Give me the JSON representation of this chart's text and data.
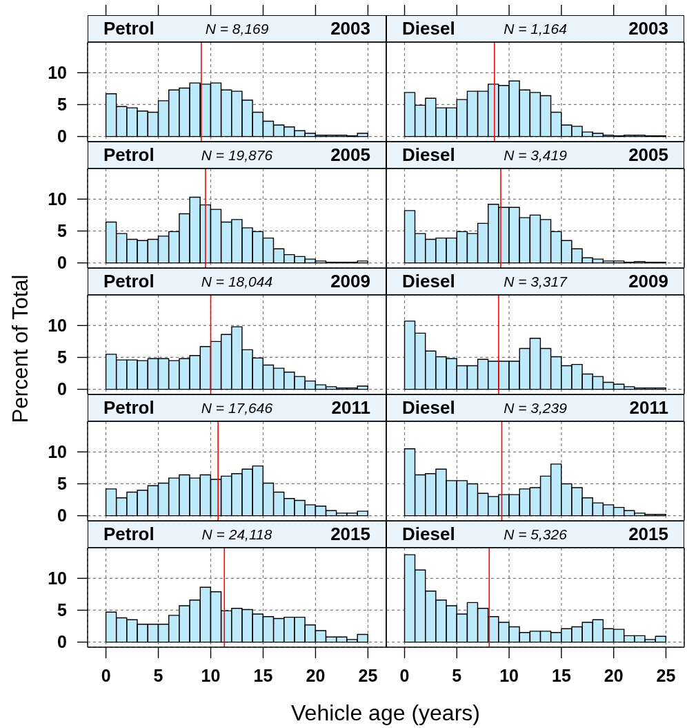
{
  "chart_data": [
    {
      "type": "histogram",
      "title": "Petrol",
      "annotations": [
        "N = 8,169",
        "2003"
      ],
      "bins": [
        0,
        1,
        2,
        3,
        4,
        5,
        6,
        7,
        8,
        9,
        10,
        11,
        12,
        13,
        14,
        15,
        16,
        17,
        18,
        19,
        20,
        21,
        22,
        23,
        24,
        25
      ],
      "values": [
        6.7,
        4.7,
        4.5,
        4.0,
        3.8,
        5.6,
        7.3,
        7.6,
        8.4,
        8.2,
        8.4,
        7.3,
        7.1,
        5.7,
        3.8,
        2.4,
        1.8,
        1.5,
        0.9,
        0.5,
        0.2,
        0.2,
        0.2,
        0.1,
        0.5
      ],
      "color": "#bfeafa",
      "xlim": [
        -1.75,
        26.75
      ],
      "xticks": [
        0,
        5,
        10,
        15,
        20,
        25
      ],
      "ylim": [
        -0.8,
        14.8
      ],
      "yticks": [
        10,
        5,
        0
      ],
      "grid": true,
      "ref_lines": [
        {
          "axis": "x",
          "value": 9.1,
          "color": "#ff0000"
        }
      ],
      "tick_labels": "y"
    },
    {
      "type": "histogram",
      "title": "Diesel",
      "annotations": [
        "N = 1,164",
        "2003"
      ],
      "bins": [
        0,
        1,
        2,
        3,
        4,
        5,
        6,
        7,
        8,
        9,
        10,
        11,
        12,
        13,
        14,
        15,
        16,
        17,
        18,
        19,
        20,
        21,
        22,
        23,
        24,
        25
      ],
      "values": [
        6.9,
        4.9,
        6.0,
        4.5,
        4.5,
        5.8,
        7.1,
        7.1,
        8.2,
        8.0,
        8.7,
        7.3,
        6.9,
        6.4,
        3.8,
        1.8,
        1.6,
        0.7,
        0.5,
        0.2,
        0.1,
        0.2,
        0.2,
        0.1,
        0.1
      ],
      "color": "#bfeafa",
      "xlim": [
        -1.75,
        26.75
      ],
      "xticks": [
        0,
        5,
        10,
        15,
        20,
        25
      ],
      "ylim": [
        -0.8,
        14.8
      ],
      "yticks": [
        10,
        5,
        0
      ],
      "grid": true,
      "ref_lines": [
        {
          "axis": "x",
          "value": 8.6,
          "color": "#ff0000"
        }
      ],
      "tick_labels": false
    },
    {
      "type": "histogram",
      "title": "Petrol",
      "annotations": [
        "N = 19,876",
        "2005"
      ],
      "bins": [
        0,
        1,
        2,
        3,
        4,
        5,
        6,
        7,
        8,
        9,
        10,
        11,
        12,
        13,
        14,
        15,
        16,
        17,
        18,
        19,
        20,
        21,
        22,
        23,
        24,
        25
      ],
      "values": [
        6.4,
        4.6,
        3.7,
        3.5,
        3.7,
        4.2,
        4.9,
        7.7,
        10.3,
        9.1,
        8.4,
        6.4,
        6.8,
        5.5,
        4.9,
        3.9,
        2.2,
        1.3,
        1.0,
        0.6,
        0.3,
        0.1,
        0.1,
        0.1,
        0.3
      ],
      "color": "#bfeafa",
      "xlim": [
        -1.75,
        26.75
      ],
      "xticks": [
        0,
        5,
        10,
        15,
        20,
        25
      ],
      "ylim": [
        -0.8,
        14.8
      ],
      "yticks": [
        10,
        5,
        0
      ],
      "grid": true,
      "ref_lines": [
        {
          "axis": "x",
          "value": 9.5,
          "color": "#ff0000"
        }
      ],
      "tick_labels": "y"
    },
    {
      "type": "histogram",
      "title": "Diesel",
      "annotations": [
        "N = 3,419",
        "2005"
      ],
      "bins": [
        0,
        1,
        2,
        3,
        4,
        5,
        6,
        7,
        8,
        9,
        10,
        11,
        12,
        13,
        14,
        15,
        16,
        17,
        18,
        19,
        20,
        21,
        22,
        23,
        24,
        25
      ],
      "values": [
        8.2,
        4.6,
        3.7,
        3.9,
        3.9,
        4.9,
        4.6,
        6.2,
        9.2,
        8.7,
        8.7,
        7.1,
        7.5,
        6.8,
        4.9,
        3.5,
        2.2,
        0.8,
        0.6,
        0.3,
        0.3,
        0.1,
        0.2,
        0.1,
        0.1
      ],
      "color": "#bfeafa",
      "xlim": [
        -1.75,
        26.75
      ],
      "xticks": [
        0,
        5,
        10,
        15,
        20,
        25
      ],
      "ylim": [
        -0.8,
        14.8
      ],
      "yticks": [
        10,
        5,
        0
      ],
      "grid": true,
      "ref_lines": [
        {
          "axis": "x",
          "value": 9.2,
          "color": "#ff0000"
        }
      ],
      "tick_labels": false
    },
    {
      "type": "histogram",
      "title": "Petrol",
      "annotations": [
        "N = 18,044",
        "2009"
      ],
      "ylabel": "Percent of Total",
      "bins": [
        0,
        1,
        2,
        3,
        4,
        5,
        6,
        7,
        8,
        9,
        10,
        11,
        12,
        13,
        14,
        15,
        16,
        17,
        18,
        19,
        20,
        21,
        22,
        23,
        24,
        25
      ],
      "values": [
        5.5,
        4.6,
        4.6,
        4.5,
        4.8,
        4.8,
        4.5,
        4.8,
        5.3,
        6.7,
        7.5,
        8.6,
        9.8,
        6.2,
        4.9,
        3.8,
        3.3,
        2.7,
        2.0,
        1.3,
        0.7,
        0.4,
        0.2,
        0.2,
        0.5
      ],
      "color": "#bfeafa",
      "xlim": [
        -1.75,
        26.75
      ],
      "xticks": [
        0,
        5,
        10,
        15,
        20,
        25
      ],
      "ylim": [
        -0.8,
        14.8
      ],
      "yticks": [
        10,
        5,
        0
      ],
      "grid": true,
      "ref_lines": [
        {
          "axis": "x",
          "value": 10.0,
          "color": "#ff0000"
        }
      ],
      "tick_labels": "y"
    },
    {
      "type": "histogram",
      "title": "Diesel",
      "annotations": [
        "N = 3,317",
        "2009"
      ],
      "bins": [
        0,
        1,
        2,
        3,
        4,
        5,
        6,
        7,
        8,
        9,
        10,
        11,
        12,
        13,
        14,
        15,
        16,
        17,
        18,
        19,
        20,
        21,
        22,
        23,
        24,
        25
      ],
      "values": [
        10.7,
        8.8,
        6.0,
        5.1,
        4.8,
        3.7,
        3.7,
        4.7,
        4.4,
        4.4,
        4.4,
        6.4,
        8.0,
        6.4,
        5.1,
        3.7,
        3.9,
        2.4,
        2.0,
        1.1,
        0.8,
        0.4,
        0.2,
        0.2,
        0.2
      ],
      "color": "#bfeafa",
      "xlim": [
        -1.75,
        26.75
      ],
      "xticks": [
        0,
        5,
        10,
        15,
        20,
        25
      ],
      "ylim": [
        -0.8,
        14.8
      ],
      "yticks": [
        10,
        5,
        0
      ],
      "grid": true,
      "ref_lines": [
        {
          "axis": "x",
          "value": 9.0,
          "color": "#ff0000"
        }
      ],
      "tick_labels": false
    },
    {
      "type": "histogram",
      "title": "Petrol",
      "annotations": [
        "N = 17,646",
        "2011"
      ],
      "bins": [
        0,
        1,
        2,
        3,
        4,
        5,
        6,
        7,
        8,
        9,
        10,
        11,
        12,
        13,
        14,
        15,
        16,
        17,
        18,
        19,
        20,
        21,
        22,
        23,
        24,
        25
      ],
      "values": [
        4.2,
        2.8,
        3.7,
        4.0,
        4.7,
        5.1,
        5.9,
        6.4,
        5.9,
        6.4,
        5.7,
        6.2,
        6.6,
        7.3,
        7.8,
        5.1,
        3.7,
        2.7,
        2.4,
        1.7,
        1.5,
        0.8,
        0.4,
        0.4,
        0.7
      ],
      "color": "#bfeafa",
      "xlim": [
        -1.75,
        26.75
      ],
      "xticks": [
        0,
        5,
        10,
        15,
        20,
        25
      ],
      "ylim": [
        -0.8,
        14.8
      ],
      "yticks": [
        10,
        5,
        0
      ],
      "grid": true,
      "ref_lines": [
        {
          "axis": "x",
          "value": 10.7,
          "color": "#ff0000"
        }
      ],
      "tick_labels": "y"
    },
    {
      "type": "histogram",
      "title": "Diesel",
      "annotations": [
        "N = 3,239",
        "2011"
      ],
      "bins": [
        0,
        1,
        2,
        3,
        4,
        5,
        6,
        7,
        8,
        9,
        10,
        11,
        12,
        13,
        14,
        15,
        16,
        17,
        18,
        19,
        20,
        21,
        22,
        23,
        24,
        25
      ],
      "values": [
        10.5,
        6.4,
        6.6,
        7.3,
        5.5,
        5.5,
        5.0,
        3.5,
        3.0,
        3.3,
        3.3,
        4.2,
        4.4,
        6.2,
        8.1,
        5.0,
        4.4,
        2.8,
        2.0,
        1.7,
        1.3,
        0.8,
        0.4,
        0.2,
        0.2
      ],
      "color": "#bfeafa",
      "xlim": [
        -1.75,
        26.75
      ],
      "xticks": [
        0,
        5,
        10,
        15,
        20,
        25
      ],
      "ylim": [
        -0.8,
        14.8
      ],
      "yticks": [
        10,
        5,
        0
      ],
      "grid": true,
      "ref_lines": [
        {
          "axis": "x",
          "value": 9.3,
          "color": "#ff0000"
        }
      ],
      "tick_labels": false
    },
    {
      "type": "histogram",
      "title": "Petrol",
      "annotations": [
        "N = 24,118",
        "2015"
      ],
      "xlabel": "Vehicle age (years)",
      "bins": [
        0,
        1,
        2,
        3,
        4,
        5,
        6,
        7,
        8,
        9,
        10,
        11,
        12,
        13,
        14,
        15,
        16,
        17,
        18,
        19,
        20,
        21,
        22,
        23,
        24,
        25
      ],
      "values": [
        4.7,
        3.8,
        3.5,
        2.8,
        2.8,
        2.8,
        4.2,
        5.7,
        6.6,
        8.6,
        7.9,
        4.9,
        5.3,
        5.1,
        4.4,
        4.0,
        3.7,
        3.9,
        3.9,
        2.7,
        1.8,
        0.8,
        0.8,
        0.4,
        1.2
      ],
      "color": "#bfeafa",
      "xlim": [
        -1.75,
        26.75
      ],
      "xticks": [
        0,
        5,
        10,
        15,
        20,
        25
      ],
      "ylim": [
        -0.8,
        14.8
      ],
      "yticks": [
        10,
        5,
        0
      ],
      "grid": true,
      "ref_lines": [
        {
          "axis": "x",
          "value": 11.3,
          "color": "#ff0000"
        }
      ]
    },
    {
      "type": "histogram",
      "title": "Diesel",
      "annotations": [
        "N = 5,326",
        "2015"
      ],
      "bins": [
        0,
        1,
        2,
        3,
        4,
        5,
        6,
        7,
        8,
        9,
        10,
        11,
        12,
        13,
        14,
        15,
        16,
        17,
        18,
        19,
        20,
        21,
        22,
        23,
        24,
        25
      ],
      "values": [
        13.7,
        11.3,
        8.0,
        6.6,
        5.7,
        4.4,
        6.2,
        5.3,
        4.0,
        3.1,
        2.4,
        1.5,
        1.7,
        1.7,
        1.5,
        2.1,
        2.4,
        3.1,
        3.5,
        2.1,
        2.0,
        1.0,
        1.0,
        0.4,
        0.9
      ],
      "color": "#bfeafa",
      "xlim": [
        -1.75,
        26.75
      ],
      "xticks": [
        0,
        5,
        10,
        15,
        20,
        25
      ],
      "ylim": [
        -0.8,
        14.8
      ],
      "yticks": [
        10,
        5,
        0
      ],
      "grid": true,
      "ref_lines": [
        {
          "axis": "x",
          "value": 8.1,
          "color": "#ff0000"
        }
      ],
      "tick_labels": "x"
    }
  ]
}
